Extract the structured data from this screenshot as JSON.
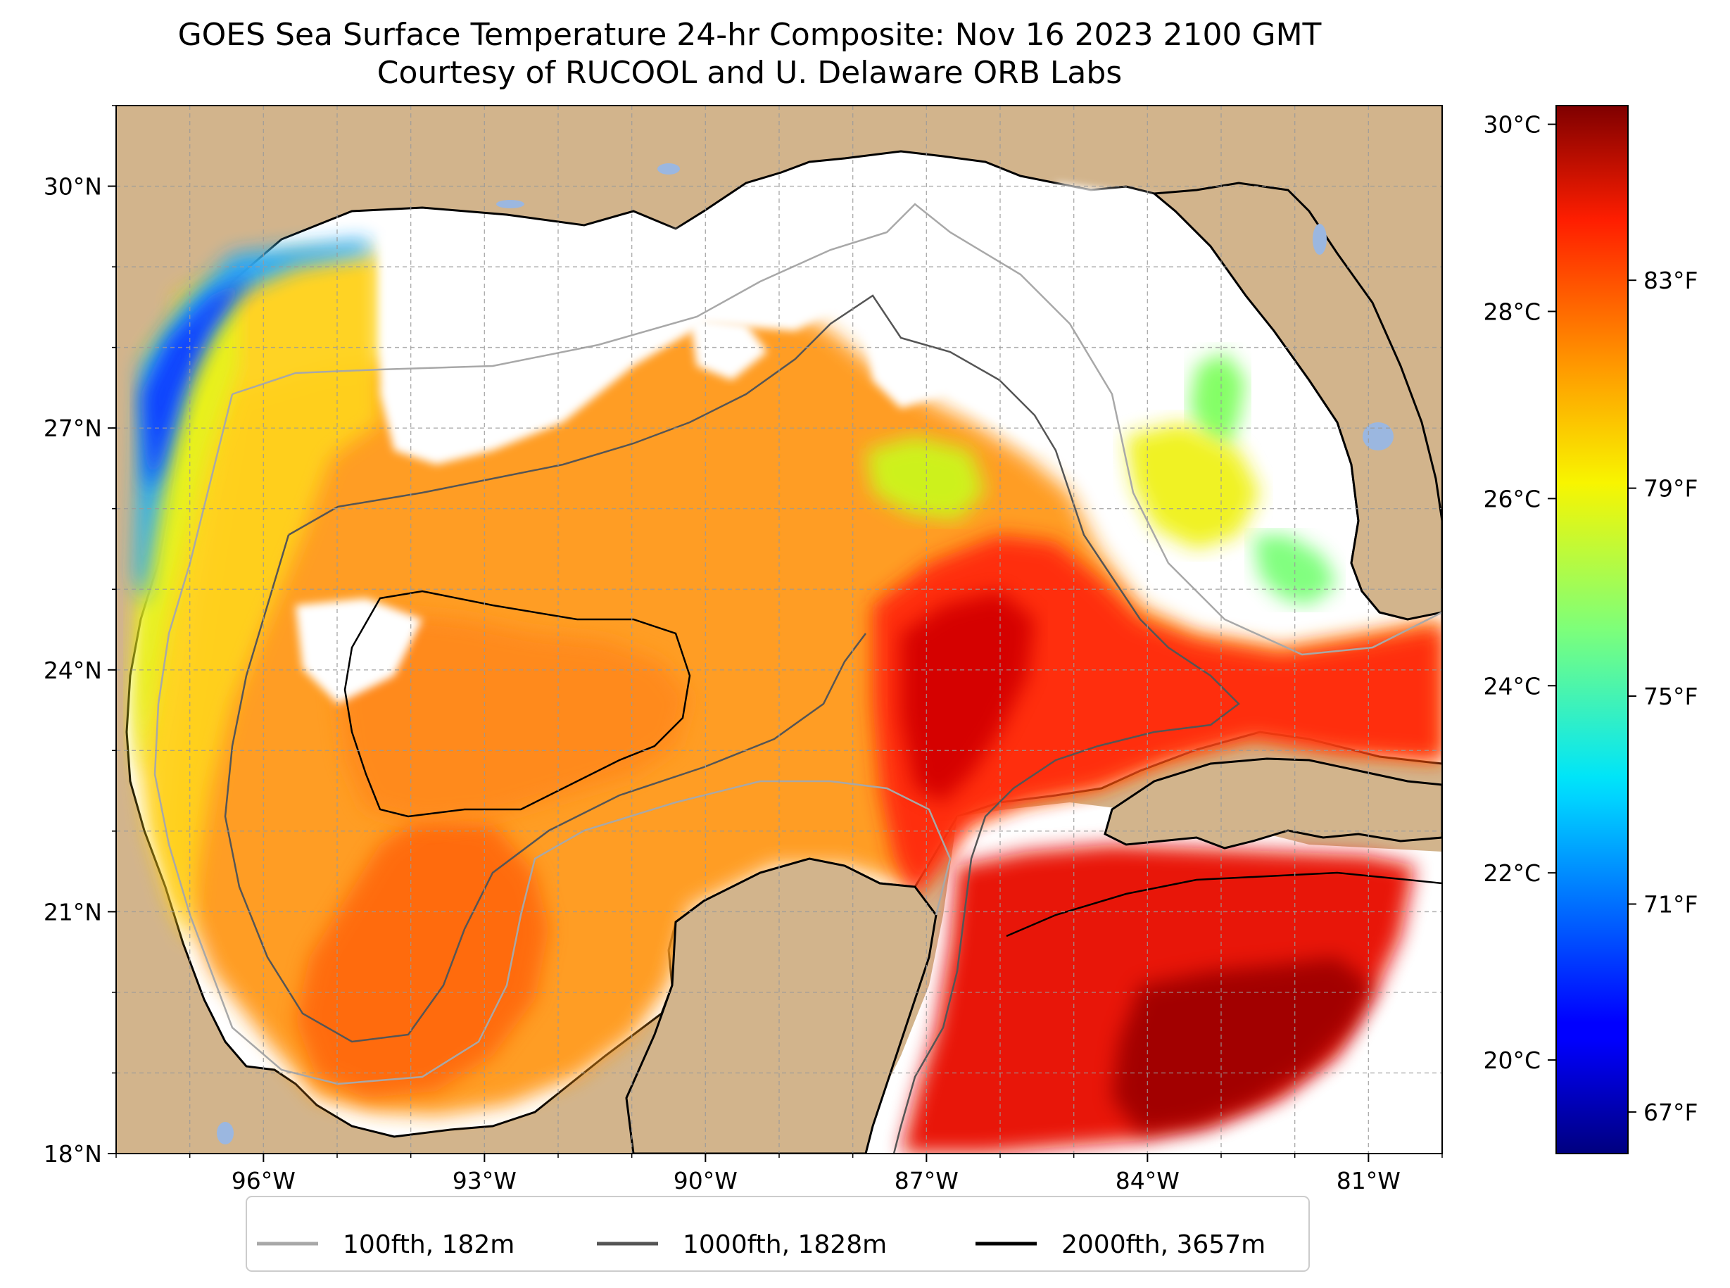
{
  "title": {
    "line1": "GOES Sea Surface Temperature 24-hr Composite: Nov 16 2023 2100 GMT",
    "line2": "Courtesy of RUCOOL and U. Delaware ORB Labs"
  },
  "map": {
    "lon_range": [
      -98,
      -80
    ],
    "lat_range": [
      18,
      31
    ],
    "lon_ticks": [
      {
        "value": -96,
        "label": "96°W"
      },
      {
        "value": -93,
        "label": "93°W"
      },
      {
        "value": -90,
        "label": "90°W"
      },
      {
        "value": -87,
        "label": "87°W"
      },
      {
        "value": -84,
        "label": "84°W"
      },
      {
        "value": -81,
        "label": "81°W"
      }
    ],
    "lat_ticks": [
      {
        "value": 30,
        "label": "30°N"
      },
      {
        "value": 27,
        "label": "27°N"
      },
      {
        "value": 24,
        "label": "24°N"
      },
      {
        "value": 21,
        "label": "21°N"
      },
      {
        "value": 18,
        "label": "18°N"
      }
    ],
    "gridlines": true,
    "colors": {
      "land": "#d2b48c",
      "no_data": "#ffffff",
      "lakes": "#9bb7e0",
      "coast": "#000000"
    }
  },
  "colorbar": {
    "celsius_ticks": [
      {
        "value": 30,
        "label": "30°C"
      },
      {
        "value": 28,
        "label": "28°C"
      },
      {
        "value": 26,
        "label": "26°C"
      },
      {
        "value": 24,
        "label": "24°C"
      },
      {
        "value": 22,
        "label": "22°C"
      },
      {
        "value": 20,
        "label": "20°C"
      }
    ],
    "fahrenheit_ticks": [
      {
        "value": 83,
        "label": "83°F"
      },
      {
        "value": 79,
        "label": "79°F"
      },
      {
        "value": 75,
        "label": "75°F"
      },
      {
        "value": 71,
        "label": "71°F"
      },
      {
        "value": 67,
        "label": "67°F"
      }
    ],
    "range_c": [
      19.0,
      30.2
    ],
    "colormap": "jet"
  },
  "legend": {
    "placement": "bottom",
    "items": [
      {
        "label": "100fth, 182m",
        "color": "#a8a8a8"
      },
      {
        "label": "1000fth, 1828m",
        "color": "#555555"
      },
      {
        "label": "2000fth, 3657m",
        "color": "#000000"
      }
    ]
  }
}
